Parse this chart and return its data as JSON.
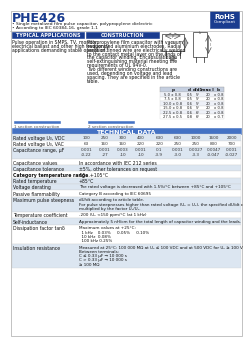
{
  "title": "PHE426",
  "subtitle1": "Single metalized film pulse capacitor, polypropylene dielectric",
  "subtitle2": "According to IEC 60384-16, grade 1.1",
  "rohs_text": "RoHS\nCompliant",
  "section_headers": [
    "TYPICAL APPLICATIONS",
    "CONSTRUCTION"
  ],
  "typical_app_text": "Pulse operation in SMPS, TV, monitor,\nelectrical ballast and other high frequency\napplications demanding stable operation.",
  "construction_lines": [
    "Polypropylene film capacitor with vacuum",
    "evaporated aluminium electrodes. Radial",
    "leads of tinned wire are electrically welded",
    "to the contact metal layer on the ends of",
    "the capacitor winding. Encapsulation in",
    "self-extinguishing material meeting the",
    "requirements of UL 94V-0.",
    "Two different winding constructions are",
    "used, depending on voltage and lead",
    "spacing. They are specified in the article",
    "table."
  ],
  "section1_label": "1 section construction",
  "section2_label": "2 section construction",
  "tech_header": "TECHNICAL DATA",
  "td_col_labels": [
    "",
    "100",
    "250",
    "300",
    "400",
    "630",
    "630",
    "1000",
    "1600",
    "2000"
  ],
  "table_rows": [
    [
      "Rated voltage U₀, VDC",
      "100",
      "250",
      "300",
      "400",
      "630",
      "630",
      "1000",
      "1600",
      "2000"
    ],
    [
      "Rated voltage U₀, VAC",
      "63",
      "160",
      "160",
      "220",
      "220",
      "250",
      "250",
      "800",
      "700"
    ],
    [
      "Capacitance range, μF",
      "0.001\n-0.22",
      "0.001\n-27",
      "0.003\n-10",
      "0.001\n-10",
      "0.1\n-3.9",
      "0.001\n-3.0",
      "0.0027\n-3.3",
      "0.0047\n-0.047",
      "0.001\n-0.027"
    ],
    [
      "Capacitance values",
      "In accordance with IEC 212 series"
    ],
    [
      "Capacitance tolerance",
      "±5%, other tolerances on request"
    ],
    [
      "Category temperature range",
      "-55...+105°C"
    ],
    [
      "Rated temperature",
      "+85°C"
    ]
  ],
  "extra_rows": [
    [
      "Voltage derating",
      "The rated voltage is decreased with 1.5%/°C between +85°C and +105°C"
    ],
    [
      "Passive flammability",
      "Category B according to IEC 60695"
    ],
    [
      "Maximum pulse steepness",
      "dU/dt according to article table.\nFor pulse steepnesses higher than rated voltage (U₀ = U₀), the specified dU/dt can be\nmultiplied by the factor U₀/U₀."
    ],
    [
      "Temperature coefficient",
      "-200 (U₀ <150 ppm/°C (at 1 kHz)"
    ],
    [
      "Self-inductance",
      "Approximately 5 nH/cm for the total length of capacitor winding and the leads."
    ],
    [
      "Dissipation factor tanδ",
      "Maximum values at +25°C:\n  1 kHz    0.03%     0.05%     0.10%\n  10 kHz  0.08%\n  100 kHz 0.25%"
    ],
    [
      "Insulation resistance",
      "Measured at 25°C: 100 000 MΩ at U₀ ≤ 100 VDC and at 500 VDC for U₀ ≥ 100 VDC\nBetween terminals:\nC ≤ 0.33 μF → 10 000 s\nC > 0.33 μF → 10 000 s\n≥ 100 MΩ"
    ]
  ],
  "bg_color": "#ffffff",
  "title_color": "#1a3c8f",
  "header_bg_color": "#1a3c8f",
  "rohs_bg": "#1a3c8f",
  "tech_header_bg": "#4472c4",
  "row_alt_color": "#dce6f1",
  "dim_table_headers": [
    "p",
    "d",
    "d/d1",
    "max l",
    "b"
  ],
  "dim_rows": [
    [
      "5.0 x 0.8",
      "0.5",
      "5°",
      "20",
      "x 0.8"
    ],
    [
      "7.5 x 0.8",
      "0.5",
      "5°",
      "20",
      "x 0.8"
    ],
    [
      "10.0 x 0.8",
      "0.6",
      "5°",
      "20",
      "x 0.8"
    ],
    [
      "15.0 x 0.8",
      "0.6",
      "5°",
      "20",
      "x 0.8"
    ],
    [
      "22.5 x 0.8",
      "0.6",
      "6°",
      "20",
      "x 0.8"
    ],
    [
      "27.5 x 0.5",
      "0.8",
      "6°",
      "20",
      "x 0.7"
    ]
  ]
}
